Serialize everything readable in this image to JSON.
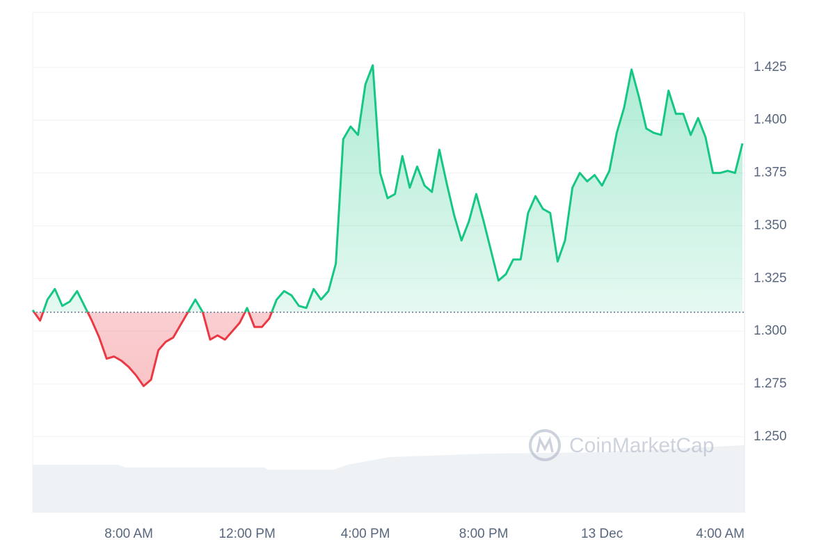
{
  "chart_data": {
    "type": "line",
    "categories": [
      null,
      null,
      null,
      null,
      null,
      null,
      null,
      null,
      null,
      null,
      null,
      null,
      null,
      "8:00 AM",
      null,
      null,
      null,
      null,
      null,
      null,
      null,
      null,
      null,
      null,
      null,
      null,
      null,
      null,
      null,
      "12:00 PM",
      null,
      null,
      null,
      null,
      null,
      null,
      null,
      null,
      null,
      null,
      null,
      null,
      null,
      null,
      null,
      "4:00 PM",
      null,
      null,
      null,
      null,
      null,
      null,
      null,
      null,
      null,
      null,
      null,
      null,
      null,
      null,
      null,
      "8:00 PM",
      null,
      null,
      null,
      null,
      null,
      null,
      null,
      null,
      null,
      null,
      null,
      null,
      null,
      null,
      null,
      "13 Dec",
      null,
      null,
      null,
      null,
      null,
      null,
      null,
      null,
      null,
      null,
      null,
      null,
      null,
      null,
      null,
      "4:00 AM",
      null,
      null,
      null
    ],
    "values": [
      1.31,
      1.305,
      1.315,
      1.32,
      1.312,
      1.314,
      1.319,
      1.312,
      1.305,
      1.297,
      1.287,
      1.288,
      1.286,
      1.283,
      1.279,
      1.274,
      1.277,
      1.291,
      1.295,
      1.297,
      1.303,
      1.309,
      1.315,
      1.309,
      1.296,
      1.298,
      1.296,
      1.3,
      1.304,
      1.311,
      1.302,
      1.302,
      1.306,
      1.315,
      1.319,
      1.317,
      1.312,
      1.311,
      1.32,
      1.315,
      1.319,
      1.332,
      1.391,
      1.397,
      1.393,
      1.417,
      1.426,
      1.375,
      1.363,
      1.365,
      1.383,
      1.368,
      1.378,
      1.369,
      1.366,
      1.386,
      1.37,
      1.355,
      1.343,
      1.352,
      1.365,
      1.352,
      1.338,
      1.324,
      1.327,
      1.334,
      1.334,
      1.356,
      1.364,
      1.358,
      1.356,
      1.333,
      1.343,
      1.368,
      1.375,
      1.371,
      1.374,
      1.369,
      1.376,
      1.394,
      1.406,
      1.424,
      1.411,
      1.396,
      1.394,
      1.393,
      1.414,
      1.403,
      1.403,
      1.393,
      1.401,
      1.392,
      1.375,
      1.375,
      1.376,
      1.375,
      1.389
    ],
    "baseline": 1.309,
    "color_up": "#16c784",
    "color_down": "#ea3943",
    "ylim": [
      1.214,
      1.451
    ],
    "yticks": [
      {
        "value": 1.25,
        "label": "1.250"
      },
      1.275,
      {
        "value": 1.3,
        "label": "1.300"
      },
      1.325,
      {
        "value": 1.35,
        "label": "1.350"
      },
      1.375,
      {
        "value": 1.4,
        "label": "1.400"
      },
      1.425
    ],
    "grid": true,
    "watermark": "CoinMarketCap"
  }
}
